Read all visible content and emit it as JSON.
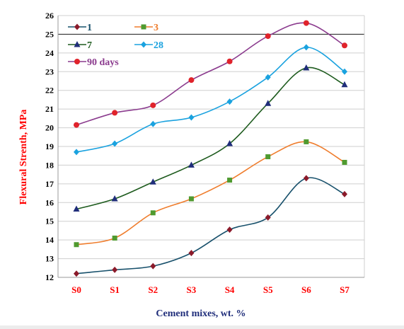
{
  "chart_data": {
    "type": "line",
    "title": "",
    "xlabel": "Cement mixes, wt. %",
    "ylabel": "Flexural Strenth, MPa",
    "categories": [
      "S0",
      "S1",
      "S2",
      "S3",
      "S4",
      "S5",
      "S6",
      "S7"
    ],
    "ylim": [
      12,
      26
    ],
    "yticks": [
      12,
      13,
      14,
      15,
      16,
      17,
      18,
      19,
      20,
      21,
      22,
      23,
      24,
      25,
      26
    ],
    "grid": "horizontal",
    "legend_position": "top-left",
    "axis_label_color": "#ff0000",
    "series": [
      {
        "name": "1",
        "values": [
          12.2,
          12.4,
          12.6,
          13.3,
          14.55,
          15.2,
          17.3,
          16.45
        ],
        "color": "#17506b",
        "marker": "diamond",
        "marker_color": "#8b1a2a"
      },
      {
        "name": "3",
        "values": [
          13.75,
          14.1,
          15.45,
          16.2,
          17.2,
          18.45,
          19.25,
          18.15
        ],
        "color": "#ef7d2d",
        "marker": "square",
        "marker_color": "#4f9a2f"
      },
      {
        "name": "7",
        "values": [
          15.65,
          16.2,
          17.1,
          18.0,
          19.15,
          21.3,
          23.2,
          22.3
        ],
        "color": "#1e5b1e",
        "marker": "triangle",
        "marker_color": "#1f2d7a"
      },
      {
        "name": "28",
        "values": [
          18.7,
          19.15,
          20.2,
          20.55,
          21.4,
          22.7,
          24.3,
          23.0
        ],
        "color": "#1aa2df",
        "marker": "diamond",
        "marker_color": "#1aa2df"
      },
      {
        "name": "90 days",
        "values": [
          20.15,
          20.8,
          21.2,
          22.55,
          23.55,
          24.9,
          25.6,
          24.4
        ],
        "color": "#8b3b8e",
        "marker": "circle",
        "marker_color": "#e0232b"
      }
    ]
  }
}
